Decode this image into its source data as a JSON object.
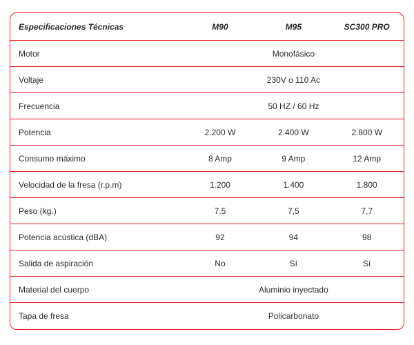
{
  "colors": {
    "border": "#ec1c24",
    "text": "#2b2b2b",
    "background": "#ffffff"
  },
  "type": "table",
  "header": {
    "label": "Especificaciones Técnicas",
    "col1": "M90",
    "col2": "M95",
    "col3": "SC300 PRO"
  },
  "rows": [
    {
      "label": "Motor",
      "merged": true,
      "value": "Monofásico"
    },
    {
      "label": "Voltaje",
      "merged": true,
      "value": "230V o 110 Ac"
    },
    {
      "label": "Frecuencia",
      "merged": true,
      "value": "50 HZ / 60 Hz"
    },
    {
      "label": "Potencia",
      "merged": false,
      "v1": "2.200 W",
      "v2": "2.400 W",
      "v3": "2.800 W"
    },
    {
      "label": "Consumo máximo",
      "merged": false,
      "v1": "8 Amp",
      "v2": "9 Amp",
      "v3": "12 Amp"
    },
    {
      "label": "Velocidad de la fresa (r.p.m)",
      "merged": false,
      "v1": "1.200",
      "v2": "1.400",
      "v3": "1.800"
    },
    {
      "label": "Peso (kg.)",
      "merged": false,
      "v1": "7,5",
      "v2": "7,5",
      "v3": "7,7"
    },
    {
      "label": "Potencia acústica (dBA)",
      "merged": false,
      "v1": "92",
      "v2": "94",
      "v3": "98"
    },
    {
      "label": "Salida de aspiración",
      "merged": false,
      "v1": "No",
      "v2": "Sí",
      "v3": "Sí"
    },
    {
      "label": "Material del cuerpo",
      "merged": true,
      "value": "Aluminio inyectado"
    },
    {
      "label": "Tapa de fresa",
      "merged": true,
      "value": "Policarbonato"
    }
  ]
}
